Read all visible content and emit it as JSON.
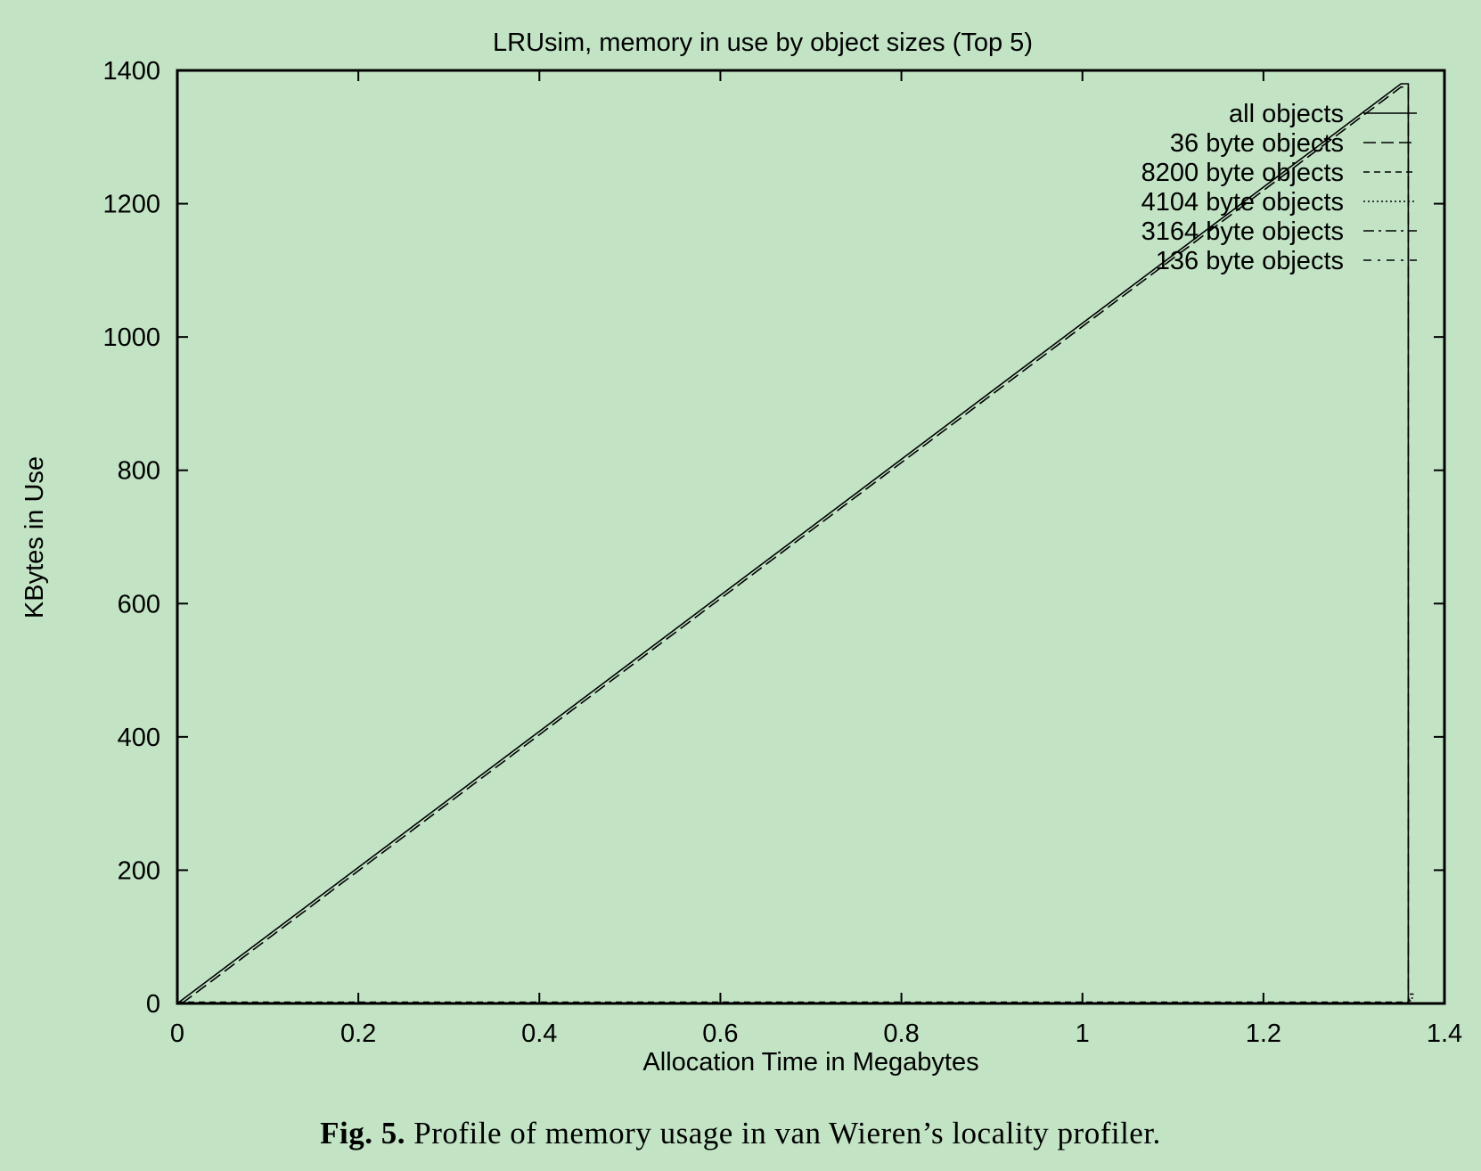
{
  "chart_data": {
    "type": "line",
    "title": "LRUsim, memory in use by object sizes (Top 5)",
    "xlabel": "Allocation Time in Megabytes",
    "ylabel": "KBytes in Use",
    "xlim": [
      0,
      1.4
    ],
    "ylim": [
      0,
      1400
    ],
    "xticks": [
      0,
      0.2,
      0.4,
      0.6,
      0.8,
      1,
      1.2,
      1.4
    ],
    "xtick_labels": [
      "0",
      "0.2",
      "0.4",
      "0.6",
      "0.8",
      "1",
      "1.2",
      "1.4"
    ],
    "yticks": [
      0,
      200,
      400,
      600,
      800,
      1000,
      1200,
      1400
    ],
    "ytick_labels": [
      "0",
      "200",
      "400",
      "600",
      "800",
      "1000",
      "1200",
      "1400"
    ],
    "grid": false,
    "legend_position": "top-right",
    "series": [
      {
        "name": "all objects",
        "dash": "solid",
        "x": [
          0,
          1.352,
          1.36,
          1.36
        ],
        "y": [
          0,
          1380,
          1380,
          0
        ]
      },
      {
        "name": "36 byte objects",
        "dash": "long-dash",
        "x": [
          0.005,
          1.352,
          1.36,
          1.36
        ],
        "y": [
          0,
          1375,
          1375,
          0
        ]
      },
      {
        "name": "8200 byte objects",
        "dash": "short-dash",
        "x": [
          0,
          1.36,
          1.36,
          1.366
        ],
        "y": [
          2,
          2,
          14,
          14
        ]
      },
      {
        "name": "4104 byte objects",
        "dash": "dotted",
        "x": [
          0,
          1.36,
          1.36,
          1.366
        ],
        "y": [
          1,
          1,
          8,
          8
        ]
      },
      {
        "name": "3164 byte objects",
        "dash": "dash-dot",
        "x": [
          0,
          1.36,
          1.36,
          1.366
        ],
        "y": [
          1,
          1,
          6,
          6
        ]
      },
      {
        "name": "136 byte objects",
        "dash": "dash-dot-sparse",
        "x": [
          0,
          1.36,
          1.36,
          1.366
        ],
        "y": [
          0.5,
          0.5,
          4,
          4
        ]
      }
    ]
  },
  "caption": {
    "label": "Fig. 5.",
    "text": "Profile of memory usage in van Wieren’s locality profiler."
  }
}
